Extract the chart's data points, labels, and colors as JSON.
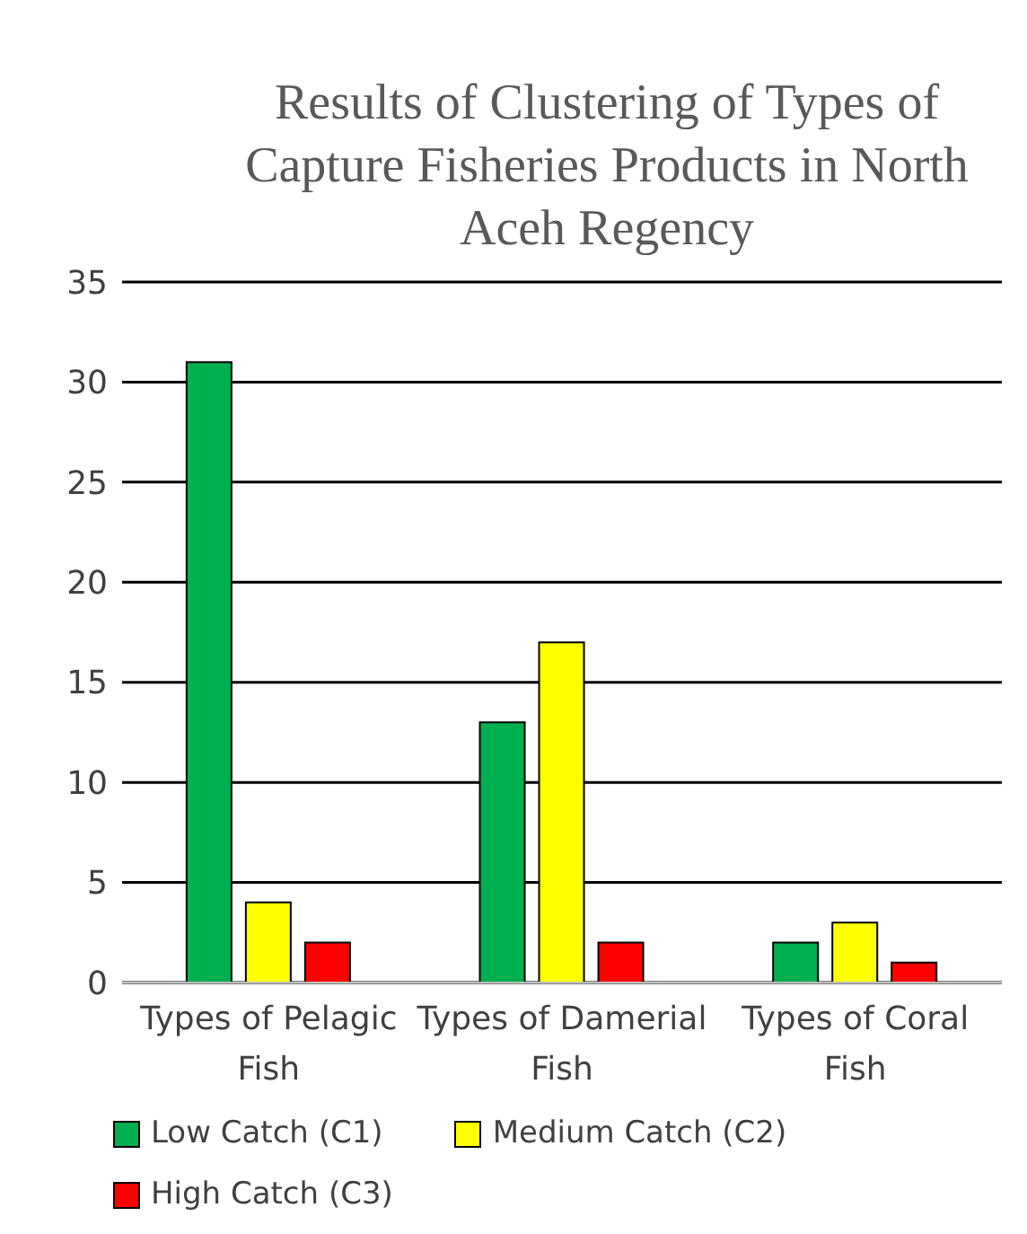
{
  "chart_data": {
    "type": "bar",
    "title": "Results of Clustering of Types of Capture Fisheries Products in North Aceh Regency",
    "categories": [
      "Types of Pelagic Fish",
      "Types of Damerial Fish",
      "Types of Coral Fish"
    ],
    "series": [
      {
        "name": "Low Catch (C1)",
        "color": "#00b050",
        "values": [
          31,
          13,
          2
        ]
      },
      {
        "name": "Medium Catch (C2)",
        "color": "#ffff00",
        "values": [
          4,
          17,
          3
        ]
      },
      {
        "name": "High Catch (C3)",
        "color": "#ff0000",
        "values": [
          2,
          2,
          1
        ]
      }
    ],
    "ylim": [
      0,
      35
    ],
    "yticks": [
      0,
      5,
      10,
      15,
      20,
      25,
      30,
      35
    ],
    "grid": "y",
    "legend": "bottom"
  }
}
